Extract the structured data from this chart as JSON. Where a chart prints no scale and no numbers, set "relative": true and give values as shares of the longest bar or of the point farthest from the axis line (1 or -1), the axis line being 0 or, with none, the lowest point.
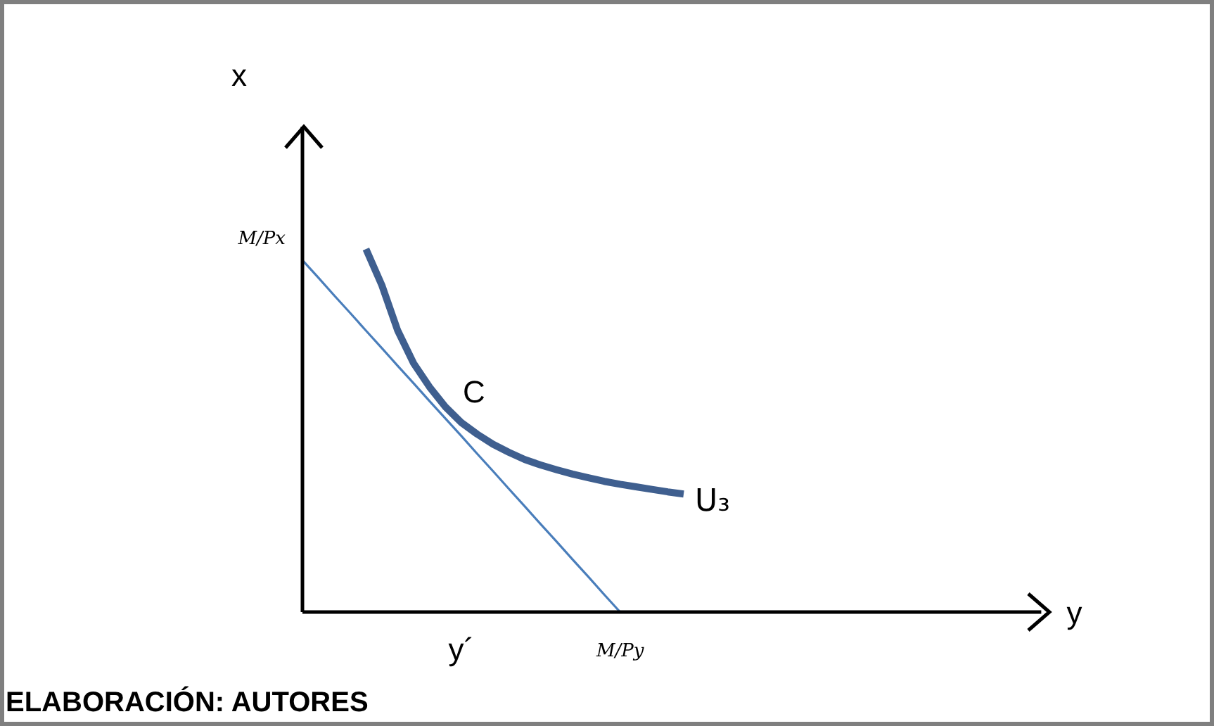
{
  "chart_data": {
    "type": "line",
    "relative": true,
    "categories": [
      null,
      null,
      null,
      null,
      null,
      null,
      null,
      null,
      null,
      null,
      "y´",
      null,
      null,
      null,
      null,
      null,
      null,
      null,
      null,
      null,
      "M/Py",
      null,
      null,
      null,
      null
    ],
    "legend": false,
    "marker": "none",
    "line_style": "solid",
    "series": [
      {
        "name": "U₃",
        "color": "#3f5f8f",
        "values": [
          null,
          null,
          null,
          null,
          1,
          0.9,
          0.775,
          0.685,
          0.62,
          0.565,
          0.522,
          0.49,
          0.462,
          0.44,
          0.42,
          0.405,
          0.392,
          0.38,
          0.37,
          0.36,
          0.352,
          0.345,
          0.338,
          0.331,
          0.325
        ]
      },
      {
        "color": "#4a7ebb",
        "values": [
          0.969,
          0.921,
          0.872,
          0.824,
          0.775,
          0.727,
          0.678,
          0.63,
          0.581,
          0.533,
          0.485,
          0.436,
          0.388,
          0.339,
          0.291,
          0.242,
          0.194,
          0.145,
          0.097,
          0.048,
          0,
          null,
          null,
          null,
          null
        ]
      }
    ],
    "annotations": [
      "x",
      "y",
      "C",
      "M/Px",
      "ELABORACIÓN: AUTORES"
    ]
  }
}
